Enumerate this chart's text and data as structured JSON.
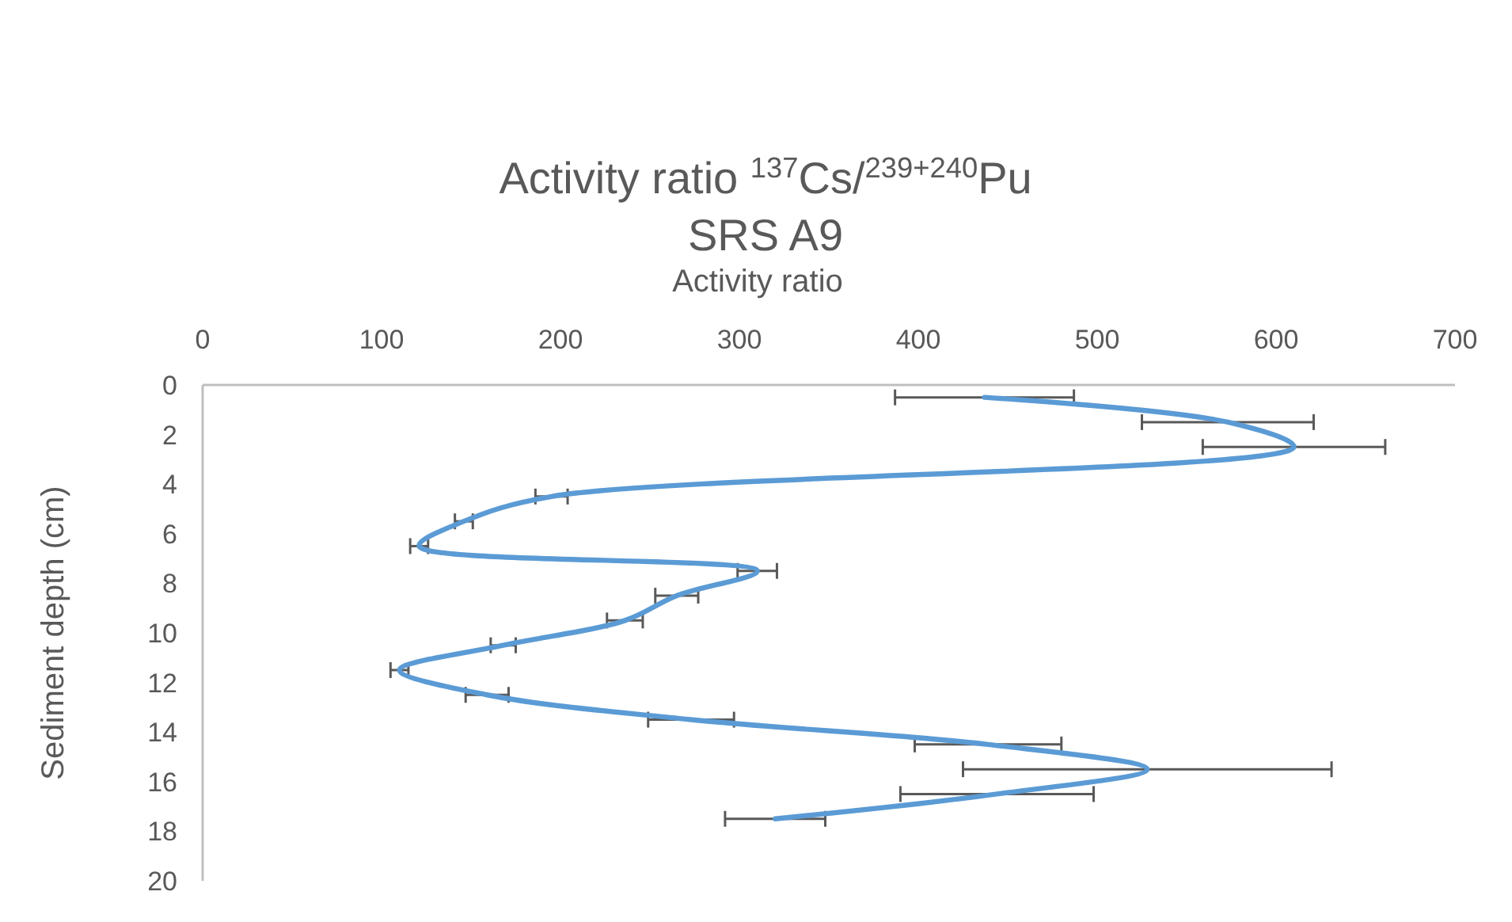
{
  "chart_data": {
    "type": "line",
    "orientation": "horizontal",
    "title": "Activity ratio $^{137}$Cs/$^{239+240}$Pu",
    "subtitle": "SRS A9",
    "xlabel": "Activity ratio",
    "ylabel": "Sediment depth (cm)",
    "x": [
      0.5,
      1.5,
      2.5,
      4.5,
      5.5,
      6.5,
      7.5,
      8.5,
      9.5,
      10.5,
      11.5,
      12.5,
      13.5,
      14.5,
      15.5,
      16.5,
      17.5
    ],
    "series": [
      {
        "color": "#5b9bd5",
        "values": [
          437,
          573,
          610,
          195,
          146,
          121,
          310,
          265,
          236,
          168,
          110,
          159,
          273,
          439,
          528,
          444,
          320
        ],
        "errors": [
          50,
          48,
          51,
          9,
          5,
          5,
          11,
          12,
          10,
          7,
          5,
          12,
          24,
          41,
          103,
          54,
          28
        ]
      }
    ],
    "xlim": [
      0,
      700
    ],
    "xticks": [
      0,
      100,
      200,
      300,
      400,
      500,
      600,
      700
    ],
    "ylim": [
      20,
      0
    ],
    "yticks": [
      0,
      2,
      4,
      6,
      8,
      10,
      12,
      14,
      16,
      18,
      20
    ],
    "grid": false,
    "marker": "none",
    "line_style": "solid"
  }
}
